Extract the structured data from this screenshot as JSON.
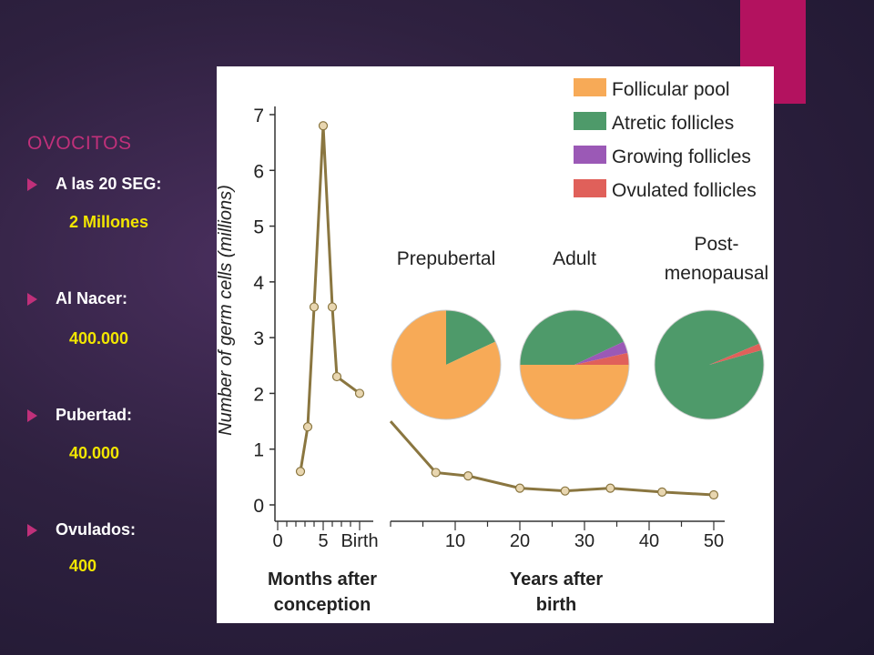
{
  "slide": {
    "heading": "OVOCITOS",
    "items": [
      {
        "label": "A las 20 SEG",
        "suffix": ":",
        "value": "2 Millones"
      },
      {
        "label": "Al Nacer",
        "suffix": ":",
        "value": "400.000"
      },
      {
        "label": "Pubertad:",
        "suffix": "",
        "value": "40.000"
      },
      {
        "label": "Ovulados:",
        "suffix": "",
        "value": "400"
      }
    ],
    "colors": {
      "accent": "#b3125f",
      "bullet": "#c0307a",
      "value_text": "#f2e600"
    }
  },
  "chart_data": [
    {
      "type": "line",
      "ylabel": "Number of germ cells (millions)",
      "ylim": [
        0,
        7
      ],
      "yticks": [
        "0",
        "1",
        "2",
        "3",
        "4",
        "5",
        "6",
        "7"
      ],
      "line_color": "#8a7640",
      "marker_color": "#e8d6b0",
      "prenatal": {
        "xlabel": "Months after conception",
        "xtick_labels": [
          "0",
          "5",
          "Birth"
        ],
        "xticks": [
          0,
          5,
          9
        ],
        "x": [
          2.5,
          3.3,
          4.0,
          5.0,
          6.0,
          6.5,
          9.0
        ],
        "y": [
          0.6,
          1.4,
          3.55,
          6.8,
          3.55,
          2.3,
          2.0
        ]
      },
      "postnatal": {
        "xlabel": "Years after birth",
        "xtick_labels": [
          "10",
          "20",
          "30",
          "40",
          "50"
        ],
        "xticks": [
          10,
          20,
          30,
          40,
          50
        ],
        "x": [
          0,
          7,
          12,
          20,
          27,
          34,
          42,
          50
        ],
        "y": [
          1.5,
          0.58,
          0.52,
          0.3,
          0.25,
          0.3,
          0.23,
          0.18
        ]
      }
    },
    {
      "type": "pie",
      "legend": [
        {
          "name": "Follicular pool",
          "color": "#f7aa57"
        },
        {
          "name": "Atretic follicles",
          "color": "#4e9a6a"
        },
        {
          "name": "Growing follicles",
          "color": "#9b59b6"
        },
        {
          "name": "Ovulated follicles",
          "color": "#e0605a"
        }
      ],
      "pies": [
        {
          "title": "Prepubertal",
          "values": [
            82,
            18,
            0,
            0
          ]
        },
        {
          "title": "Adult",
          "values": [
            50,
            43,
            3.5,
            3.5
          ]
        },
        {
          "title": "Post-\nmenopausal",
          "values": [
            0,
            98,
            0,
            2
          ]
        }
      ]
    }
  ]
}
